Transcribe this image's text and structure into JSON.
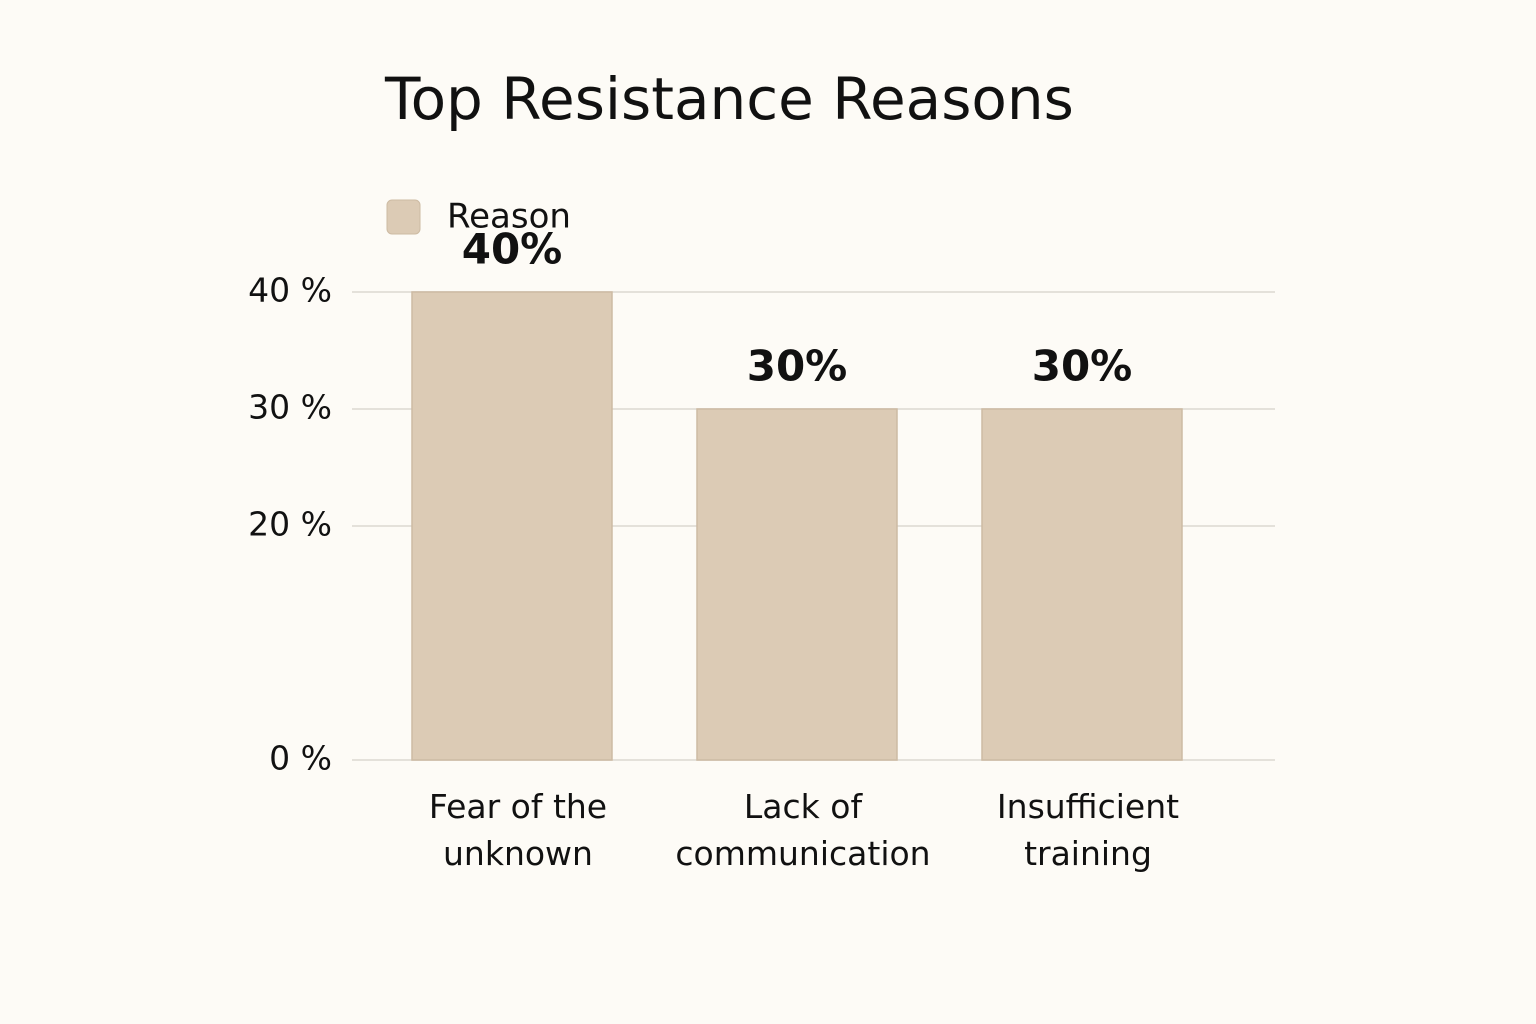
{
  "chart_data": {
    "type": "bar",
    "title": "Top Resistance Reasons",
    "categories": [
      "Fear of the unknown",
      "Lack of communication",
      "Insufficient training"
    ],
    "series": [
      {
        "name": "Reason",
        "color": "#dccbb5",
        "values": [
          40,
          30,
          30
        ],
        "value_labels": [
          "40%",
          "30%",
          "30%"
        ]
      }
    ],
    "ylim": [
      0,
      40
    ],
    "yticks": [
      {
        "value": 0,
        "label": "0 %"
      },
      {
        "value": 20,
        "label": "20 %"
      },
      {
        "value": 30,
        "label": "30 %"
      },
      {
        "value": 40,
        "label": "40 %"
      }
    ],
    "grid": true
  }
}
